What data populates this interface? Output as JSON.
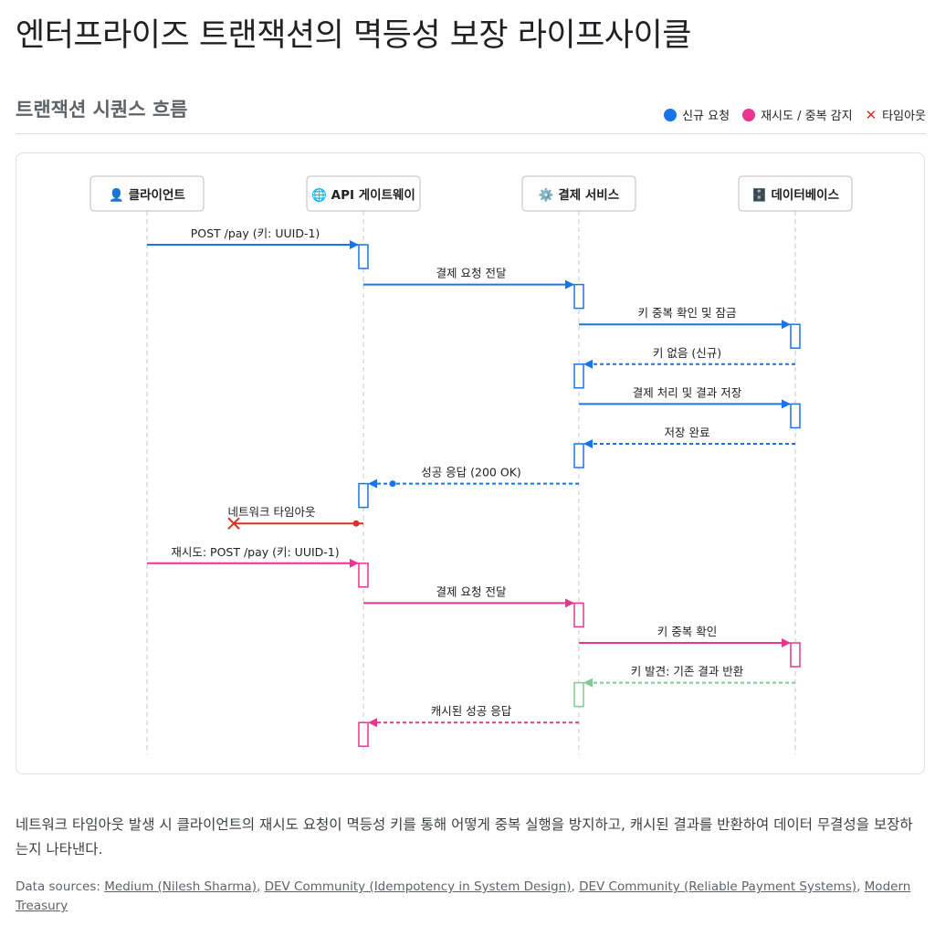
{
  "page": {
    "title": "엔터프라이즈 트랜잭션의 멱등성 보장 라이프사이클",
    "subtitle": "트랜잭션 시퀀스 흐름"
  },
  "legend": [
    {
      "label": "신규 요청",
      "color": "#1a73e8",
      "kind": "dot"
    },
    {
      "label": "재시도 / 중복 감지",
      "color": "#e8358f",
      "kind": "dot"
    },
    {
      "label": "타임아웃",
      "color": "#d93025",
      "kind": "cross"
    }
  ],
  "colors": {
    "blue": "#1a73e8",
    "pink": "#e8358f",
    "red": "#d93025",
    "green": "#81c995"
  },
  "actors": [
    {
      "icon": "user-icon",
      "glyph": "👤",
      "label": "클라이언트"
    },
    {
      "icon": "globe-icon",
      "glyph": "🌐",
      "label": "API 게이트웨이"
    },
    {
      "icon": "gear-icon",
      "glyph": "⚙️",
      "label": "결제 서비스"
    },
    {
      "icon": "database-icon",
      "glyph": "🗄️",
      "label": "데이터베이스"
    }
  ],
  "messages": [
    {
      "from": 0,
      "to": 1,
      "label": "POST /pay (키: UUID-1)",
      "style": "solid",
      "color": "blue"
    },
    {
      "from": 1,
      "to": 2,
      "label": "결제 요청 전달",
      "style": "solid",
      "color": "blue"
    },
    {
      "from": 2,
      "to": 3,
      "label": "키 중복 확인 및 잠금",
      "style": "solid",
      "color": "blue"
    },
    {
      "from": 3,
      "to": 2,
      "label": "키 없음 (신규)",
      "style": "dashed",
      "color": "blue"
    },
    {
      "from": 2,
      "to": 3,
      "label": "결제 처리 및 결과 저장",
      "style": "solid",
      "color": "blue"
    },
    {
      "from": 3,
      "to": 2,
      "label": "저장 완료",
      "style": "dashed",
      "color": "blue"
    },
    {
      "from": 2,
      "to": 1,
      "label": "성공 응답 (200 OK)",
      "style": "dashed",
      "color": "blue",
      "dot": true
    },
    {
      "from": 1,
      "to": 0,
      "label": "네트워크 타임아웃",
      "style": "solid",
      "color": "red",
      "lost": true
    },
    {
      "from": 0,
      "to": 1,
      "label": "재시도: POST /pay (키: UUID-1)",
      "style": "solid",
      "color": "pink"
    },
    {
      "from": 1,
      "to": 2,
      "label": "결제 요청 전달",
      "style": "solid",
      "color": "pink"
    },
    {
      "from": 2,
      "to": 3,
      "label": "키 중복 확인",
      "style": "solid",
      "color": "pink"
    },
    {
      "from": 3,
      "to": 2,
      "label": "키 발견: 기존 결과 반환",
      "style": "dashed",
      "color": "green"
    },
    {
      "from": 2,
      "to": 1,
      "label": "캐시된 성공 응답",
      "style": "dashed",
      "color": "pink"
    }
  ],
  "caption": "네트워크 타임아웃 발생 시 클라이언트의 재시도 요청이 멱등성 키를 통해 어떻게 중복 실행을 방지하고, 캐시된 결과를 반환하여 데이터 무결성을 보장하는지 나타낸다.",
  "sources": {
    "prefix": "Data sources: ",
    "links": [
      "Medium (Nilesh Sharma)",
      "DEV Community (Idempotency in System Design)",
      "DEV Community (Reliable Payment Systems)",
      "Modern Treasury"
    ]
  }
}
